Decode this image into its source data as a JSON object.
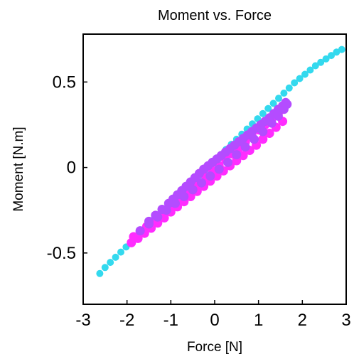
{
  "chart_data": {
    "type": "scatter",
    "title": "Moment vs. Force",
    "xlabel": "Force [N]",
    "ylabel": "Moment [N.m]",
    "xlim": [
      -3,
      3
    ],
    "ylim": [
      -0.8,
      0.78
    ],
    "xticks": [
      -3,
      -2,
      -1,
      0,
      1,
      2,
      3
    ],
    "xtick_labels": [
      "-3",
      "-2",
      "-1",
      "0",
      "1",
      "2",
      "3"
    ],
    "yticks": [
      -0.5,
      0,
      0.5
    ],
    "ytick_labels": [
      "-0.5",
      "0",
      "0.5"
    ],
    "grid": false,
    "colors": {
      "series1": "#33d9ee",
      "series2": "#ff2cff",
      "series3": "#b44cff"
    },
    "series": [
      {
        "color": "#33d9ee",
        "x": [
          -2.62,
          -2.5,
          -2.38,
          -2.26,
          -2.14,
          -2.02,
          -1.9,
          -1.78,
          -1.66,
          -1.54,
          -1.42,
          -1.3,
          -1.18,
          -1.06,
          -0.94,
          -0.82,
          -0.7,
          -0.58,
          -0.46,
          -0.34,
          -0.22,
          -0.1,
          0.02,
          0.14,
          0.26,
          0.38,
          0.5,
          0.62,
          0.74,
          0.86,
          0.98,
          1.1,
          1.22,
          1.34,
          1.46,
          1.58,
          1.7,
          1.82,
          1.94,
          2.06,
          2.18,
          2.3,
          2.42,
          2.54,
          2.66,
          2.78,
          2.9
        ],
        "y": [
          -0.62,
          -0.585,
          -0.555,
          -0.525,
          -0.495,
          -0.465,
          -0.435,
          -0.405,
          -0.375,
          -0.345,
          -0.315,
          -0.285,
          -0.255,
          -0.225,
          -0.195,
          -0.165,
          -0.135,
          -0.105,
          -0.075,
          -0.045,
          -0.015,
          0.015,
          0.045,
          0.075,
          0.105,
          0.135,
          0.165,
          0.195,
          0.225,
          0.255,
          0.285,
          0.315,
          0.345,
          0.375,
          0.405,
          0.435,
          0.465,
          0.495,
          0.52,
          0.545,
          0.57,
          0.595,
          0.615,
          0.635,
          0.655,
          0.675,
          0.69
        ]
      },
      {
        "color": "#ff2cff",
        "x": [
          -1.9,
          -1.75,
          -1.6,
          -1.45,
          -1.3,
          -1.15,
          -1.0,
          -0.85,
          -0.7,
          -0.55,
          -0.4,
          -0.25,
          -0.1,
          0.05,
          0.2,
          0.35,
          0.5,
          0.65,
          0.8,
          0.95,
          1.1,
          1.25,
          1.4,
          1.55,
          -1.85,
          -1.7,
          -1.55,
          -1.4,
          -1.25,
          -1.1,
          -0.95,
          -0.8,
          -0.65,
          -0.5,
          -0.35,
          -0.2,
          -0.05,
          0.1,
          0.25,
          0.4,
          0.55,
          0.7,
          0.85,
          1.0,
          1.15,
          1.3,
          1.45
        ],
        "y": [
          -0.44,
          -0.415,
          -0.385,
          -0.355,
          -0.325,
          -0.295,
          -0.26,
          -0.23,
          -0.2,
          -0.17,
          -0.14,
          -0.11,
          -0.08,
          -0.05,
          -0.02,
          0.01,
          0.04,
          0.07,
          0.1,
          0.13,
          0.165,
          0.2,
          0.235,
          0.27,
          -0.405,
          -0.375,
          -0.345,
          -0.315,
          -0.285,
          -0.25,
          -0.215,
          -0.185,
          -0.155,
          -0.12,
          -0.09,
          -0.055,
          -0.02,
          0.01,
          0.045,
          0.08,
          0.115,
          0.15,
          0.185,
          0.22,
          0.25,
          0.285,
          0.315
        ]
      },
      {
        "color": "#b44cff",
        "x": [
          -1.7,
          -1.5,
          -1.3,
          -1.1,
          -0.9,
          -0.7,
          -0.5,
          -0.3,
          -0.1,
          0.1,
          0.3,
          0.5,
          0.7,
          0.9,
          1.1,
          1.3,
          1.45,
          1.58,
          1.65,
          1.62,
          1.55,
          1.45,
          1.35,
          1.25,
          1.15,
          1.05,
          0.95,
          0.85,
          0.75,
          0.65,
          0.55,
          0.45,
          0.35,
          0.25,
          0.15,
          0.05,
          -0.05,
          -0.15,
          -0.25,
          -0.35,
          -0.45,
          -0.55,
          -0.65,
          -0.75,
          -0.85,
          -0.95,
          -1.05,
          -1.2,
          -1.35,
          -1.5
        ],
        "y": [
          -0.37,
          -0.33,
          -0.29,
          -0.25,
          -0.21,
          -0.17,
          -0.13,
          -0.09,
          -0.05,
          -0.01,
          0.03,
          0.075,
          0.12,
          0.165,
          0.21,
          0.26,
          0.3,
          0.34,
          0.37,
          0.38,
          0.36,
          0.34,
          0.315,
          0.29,
          0.27,
          0.25,
          0.23,
          0.21,
          0.19,
          0.17,
          0.15,
          0.13,
          0.11,
          0.09,
          0.07,
          0.05,
          0.03,
          0.01,
          -0.01,
          -0.035,
          -0.06,
          -0.085,
          -0.11,
          -0.135,
          -0.16,
          -0.185,
          -0.21,
          -0.245,
          -0.28,
          -0.315
        ]
      }
    ]
  }
}
